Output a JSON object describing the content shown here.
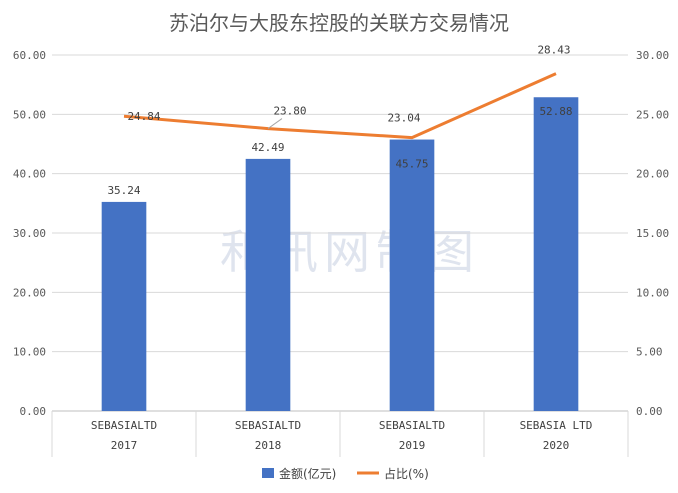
{
  "chart_data": {
    "type": "bar",
    "title": "苏泊尔与大股东控股的关联方交易情况",
    "categories": [
      [
        "SEBASIALTD",
        "2017"
      ],
      [
        "SEBASIALTD",
        "2018"
      ],
      [
        "SEBASIALTD",
        "2019"
      ],
      [
        "SEBASIA LTD",
        "2020"
      ]
    ],
    "series": [
      {
        "name": "金额(亿元)",
        "kind": "bar",
        "axis": "left",
        "color": "#4472c4",
        "values": [
          35.24,
          42.49,
          45.75,
          52.88
        ],
        "labels": [
          "35.24",
          "42.49",
          "45.75",
          "52.88"
        ]
      },
      {
        "name": "占比(%)",
        "kind": "line",
        "axis": "right",
        "color": "#ed7d31",
        "values": [
          24.84,
          23.8,
          23.04,
          28.43
        ],
        "labels": [
          "24.84",
          "23.80",
          "23.04",
          "28.43"
        ]
      }
    ],
    "y_left": {
      "min": 0,
      "max": 60,
      "step": 10,
      "tick_labels": [
        "0.00",
        "10.00",
        "20.00",
        "30.00",
        "40.00",
        "50.00",
        "60.00"
      ]
    },
    "y_right": {
      "min": 0,
      "max": 30,
      "step": 5,
      "tick_labels": [
        "0.00",
        "5.00",
        "10.00",
        "15.00",
        "20.00",
        "25.00",
        "30.00"
      ]
    },
    "grid": true,
    "legend_position": "bottom",
    "watermark": "和讯网制图"
  }
}
